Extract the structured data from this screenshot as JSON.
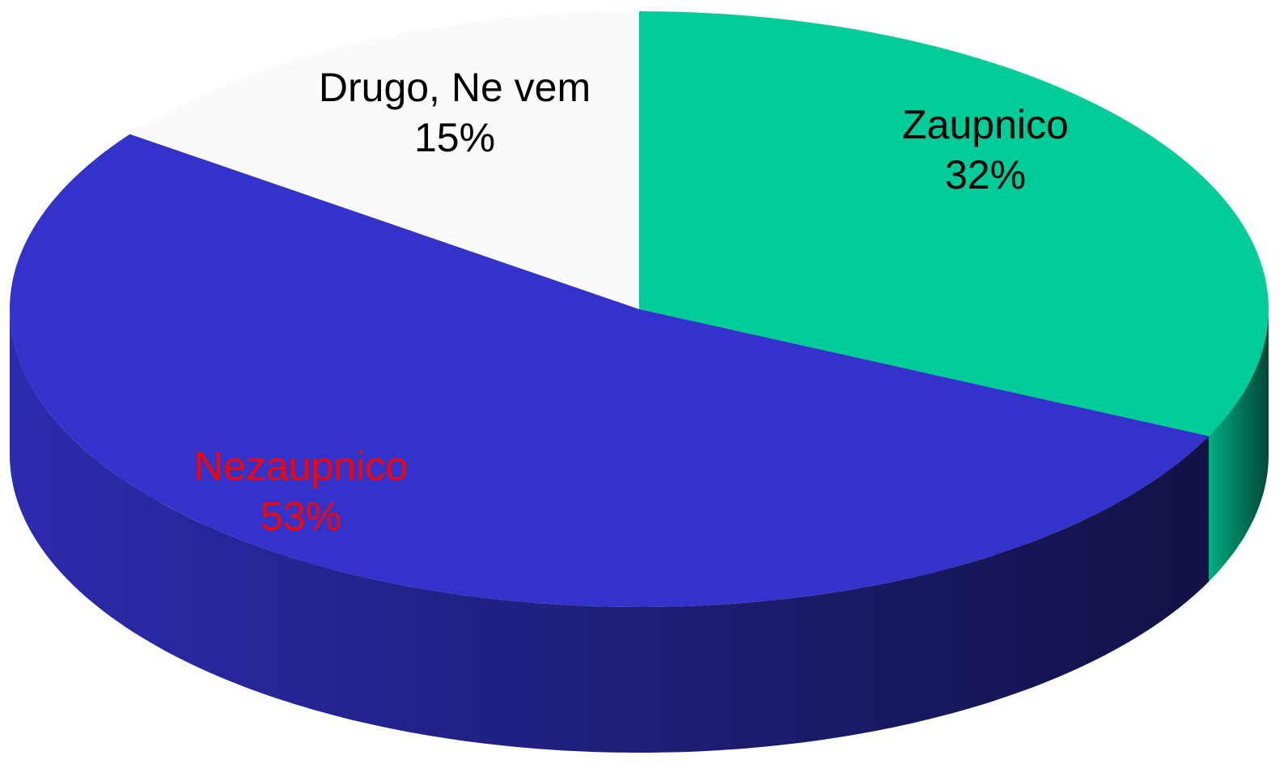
{
  "chart_data": {
    "type": "pie3d",
    "categories": [
      "Zaupnico",
      "Nezaupnico",
      "Drugo, Ne vem"
    ],
    "values": [
      32,
      53,
      15
    ],
    "value_labels": [
      "32%",
      "53%",
      "15%"
    ],
    "colors": [
      "#00cc99",
      "#3333cc",
      "#fafafa"
    ],
    "label_colors": [
      "#000000",
      "#ff0000",
      "#000000"
    ]
  }
}
